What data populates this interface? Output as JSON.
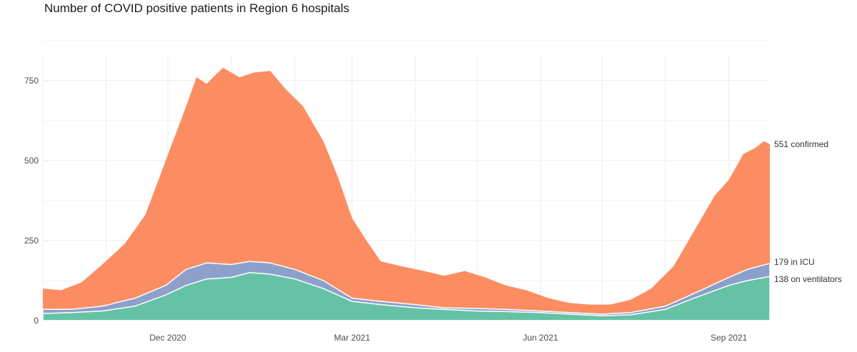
{
  "chart_data": {
    "type": "area",
    "title": "Number of COVID positive patients in Region 6 hospitals",
    "xlabel": "",
    "ylabel": "",
    "x_ticks": [
      "Dec 2020",
      "Mar 2021",
      "Jun 2021",
      "Sep 2021"
    ],
    "y_ticks": [
      "0",
      "250",
      "500",
      "750"
    ],
    "ylim": [
      0,
      890
    ],
    "xlim": [
      "2020-10-01",
      "2021-09-21"
    ],
    "grid": true,
    "series": [
      {
        "color": "#fc8d62",
        "end_label": "551 confirmed",
        "points": [
          [
            "2020-10-01",
            100
          ],
          [
            "2020-10-10",
            95
          ],
          [
            "2020-10-20",
            120
          ],
          [
            "2020-10-30",
            175
          ],
          [
            "2020-11-10",
            240
          ],
          [
            "2020-11-20",
            330
          ],
          [
            "2020-11-30",
            500
          ],
          [
            "2020-12-10",
            670
          ],
          [
            "2020-12-15",
            760
          ],
          [
            "2020-12-20",
            740
          ],
          [
            "2020-12-28",
            790
          ],
          [
            "2021-01-05",
            760
          ],
          [
            "2021-01-12",
            775
          ],
          [
            "2021-01-20",
            780
          ],
          [
            "2021-01-28",
            720
          ],
          [
            "2021-02-05",
            670
          ],
          [
            "2021-02-15",
            560
          ],
          [
            "2021-02-22",
            450
          ],
          [
            "2021-03-01",
            320
          ],
          [
            "2021-03-08",
            250
          ],
          [
            "2021-03-15",
            185
          ],
          [
            "2021-03-25",
            170
          ],
          [
            "2021-04-05",
            155
          ],
          [
            "2021-04-15",
            140
          ],
          [
            "2021-04-25",
            155
          ],
          [
            "2021-05-05",
            135
          ],
          [
            "2021-05-15",
            110
          ],
          [
            "2021-05-25",
            95
          ],
          [
            "2021-06-05",
            70
          ],
          [
            "2021-06-15",
            55
          ],
          [
            "2021-06-25",
            50
          ],
          [
            "2021-07-05",
            50
          ],
          [
            "2021-07-15",
            65
          ],
          [
            "2021-07-25",
            100
          ],
          [
            "2021-08-05",
            170
          ],
          [
            "2021-08-15",
            280
          ],
          [
            "2021-08-25",
            390
          ],
          [
            "2021-09-01",
            440
          ],
          [
            "2021-09-08",
            520
          ],
          [
            "2021-09-14",
            540
          ],
          [
            "2021-09-18",
            560
          ],
          [
            "2021-09-21",
            551
          ]
        ]
      },
      {
        "color": "#8da0cb",
        "end_label": "179 in ICU",
        "points": [
          [
            "2020-10-01",
            35
          ],
          [
            "2020-10-15",
            35
          ],
          [
            "2020-10-30",
            45
          ],
          [
            "2020-11-15",
            70
          ],
          [
            "2020-11-30",
            110
          ],
          [
            "2020-12-10",
            160
          ],
          [
            "2020-12-20",
            180
          ],
          [
            "2021-01-01",
            175
          ],
          [
            "2021-01-10",
            185
          ],
          [
            "2021-01-20",
            180
          ],
          [
            "2021-02-01",
            160
          ],
          [
            "2021-02-15",
            125
          ],
          [
            "2021-03-01",
            70
          ],
          [
            "2021-03-15",
            60
          ],
          [
            "2021-04-01",
            50
          ],
          [
            "2021-04-15",
            40
          ],
          [
            "2021-05-01",
            38
          ],
          [
            "2021-05-15",
            35
          ],
          [
            "2021-06-01",
            30
          ],
          [
            "2021-06-15",
            25
          ],
          [
            "2021-07-01",
            20
          ],
          [
            "2021-07-15",
            25
          ],
          [
            "2021-08-01",
            45
          ],
          [
            "2021-08-15",
            85
          ],
          [
            "2021-09-01",
            135
          ],
          [
            "2021-09-10",
            160
          ],
          [
            "2021-09-21",
            179
          ]
        ]
      },
      {
        "color": "#66c2a5",
        "end_label": "138 on ventilators",
        "points": [
          [
            "2020-10-01",
            22
          ],
          [
            "2020-10-15",
            25
          ],
          [
            "2020-10-30",
            30
          ],
          [
            "2020-11-15",
            45
          ],
          [
            "2020-11-30",
            80
          ],
          [
            "2020-12-10",
            110
          ],
          [
            "2020-12-20",
            130
          ],
          [
            "2021-01-01",
            135
          ],
          [
            "2021-01-10",
            150
          ],
          [
            "2021-01-20",
            145
          ],
          [
            "2021-02-01",
            130
          ],
          [
            "2021-02-15",
            100
          ],
          [
            "2021-03-01",
            60
          ],
          [
            "2021-03-15",
            50
          ],
          [
            "2021-04-01",
            40
          ],
          [
            "2021-04-15",
            35
          ],
          [
            "2021-05-01",
            30
          ],
          [
            "2021-05-15",
            28
          ],
          [
            "2021-06-01",
            25
          ],
          [
            "2021-06-15",
            20
          ],
          [
            "2021-07-01",
            15
          ],
          [
            "2021-07-15",
            18
          ],
          [
            "2021-08-01",
            35
          ],
          [
            "2021-08-15",
            70
          ],
          [
            "2021-09-01",
            110
          ],
          [
            "2021-09-10",
            125
          ],
          [
            "2021-09-21",
            138
          ]
        ]
      }
    ]
  }
}
